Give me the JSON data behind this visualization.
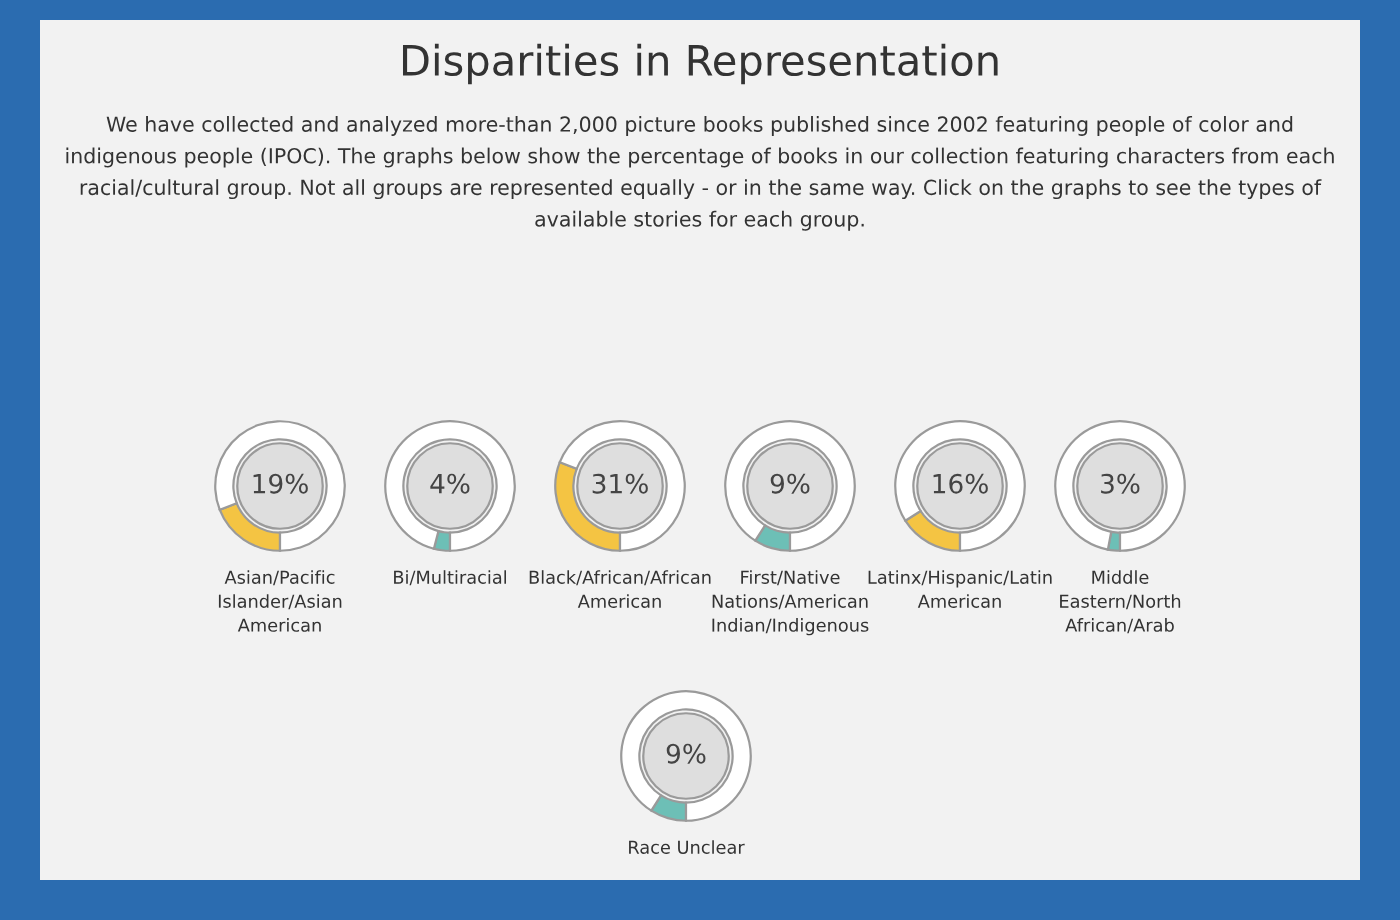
{
  "chart_data": [
    {
      "type": "other",
      "title": "Disparities in Representation",
      "subtitle": "We have collected and analyzed more-than 2,000 picture books published since 2002 featuring people of color and\nindigenous people (IPOC). The graphs below show the percentage of books in our collection featuring characters from each\nracial/cultural group. Not all groups are represented equally - or in the same way. Click on the graphs to see the types of\navailable stories for each group."
    },
    {
      "type": "donut",
      "categories": [
        "Asian/Pacific\nIslander/Asian\nAmerican",
        null
      ],
      "values": [
        19,
        81
      ],
      "colors": [
        "#f4c443",
        "#ffffff"
      ],
      "annotations": [
        "19%"
      ]
    },
    {
      "type": "donut",
      "categories": [
        "Bi/Multiracial",
        null
      ],
      "values": [
        4,
        96
      ],
      "colors": [
        "#6dbfb6",
        "#ffffff"
      ],
      "annotations": [
        "4%"
      ]
    },
    {
      "type": "donut",
      "categories": [
        "Black/African/African\nAmerican",
        null
      ],
      "values": [
        31,
        69
      ],
      "colors": [
        "#f4c443",
        "#ffffff"
      ],
      "annotations": [
        "31%"
      ]
    },
    {
      "type": "donut",
      "categories": [
        "First/Native\nNations/American\nIndian/Indigenous",
        null
      ],
      "values": [
        9,
        91
      ],
      "colors": [
        "#6dbfb6",
        "#ffffff"
      ],
      "annotations": [
        "9%"
      ]
    },
    {
      "type": "donut",
      "categories": [
        "Latinx/Hispanic/Latin\nAmerican",
        null
      ],
      "values": [
        16,
        84
      ],
      "colors": [
        "#f4c443",
        "#ffffff"
      ],
      "annotations": [
        "16%"
      ]
    },
    {
      "type": "donut",
      "categories": [
        "Middle\nEastern/North\nAfrican/Arab",
        null
      ],
      "values": [
        3,
        97
      ],
      "colors": [
        "#6dbfb6",
        "#ffffff"
      ],
      "annotations": [
        "3%"
      ]
    },
    {
      "type": "donut",
      "categories": [
        "Race Unclear",
        null
      ],
      "values": [
        9,
        91
      ],
      "colors": [
        "#6dbfb6",
        "#ffffff"
      ],
      "annotations": [
        "9%"
      ]
    }
  ]
}
